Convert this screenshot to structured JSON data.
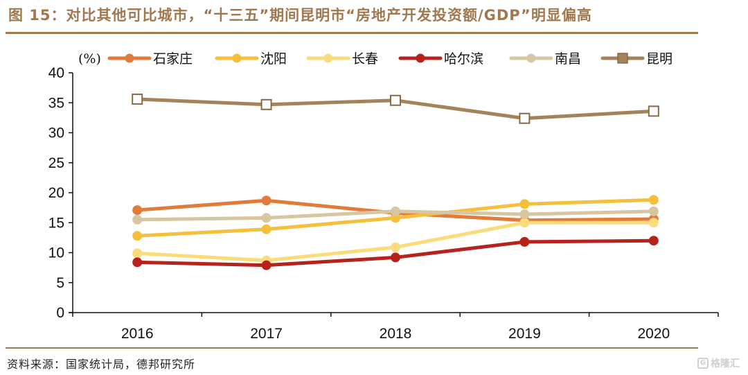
{
  "title": "图 15：对比其他可比城市，“十三五”期间昆明市“房地产开发投资额/GDP”明显偏高",
  "source": "资料来源：国家统计局，德邦研究所",
  "watermark": {
    "icon": "gelonghui-logo-icon",
    "text": "格隆汇"
  },
  "chart_data": {
    "type": "line",
    "title": "对比其他可比城市，“十三五”期间昆明市“房地产开发投资额/GDP”明显偏高",
    "figure_label": "图 15",
    "xlabel": "",
    "ylabel": "(%)",
    "unit_label": "(%)",
    "x": [
      "2016",
      "2017",
      "2018",
      "2019",
      "2020"
    ],
    "ylim": [
      0,
      40
    ],
    "yticks": [
      0,
      5,
      10,
      15,
      20,
      25,
      30,
      35,
      40
    ],
    "grid": false,
    "legend_position": "top",
    "series": [
      {
        "name": "石家庄",
        "color": "#e07b39",
        "marker": "circle",
        "values": [
          17.1,
          18.7,
          16.6,
          15.4,
          15.6
        ]
      },
      {
        "name": "沈阳",
        "color": "#f4bf3a",
        "marker": "circle",
        "values": [
          12.8,
          13.9,
          15.8,
          18.1,
          18.8
        ]
      },
      {
        "name": "长春",
        "color": "#fadc7a",
        "marker": "circle",
        "values": [
          9.9,
          8.7,
          10.9,
          15.0,
          15.0
        ]
      },
      {
        "name": "哈尔滨",
        "color": "#b5231c",
        "marker": "circle",
        "values": [
          8.4,
          7.9,
          9.2,
          11.8,
          12.0
        ]
      },
      {
        "name": "南昌",
        "color": "#d6c6a2",
        "marker": "circle",
        "values": [
          15.5,
          15.8,
          16.9,
          16.4,
          16.9
        ]
      },
      {
        "name": "昆明",
        "color": "#a5835a",
        "marker": "square",
        "values": [
          35.6,
          34.7,
          35.4,
          32.4,
          33.6
        ]
      }
    ]
  }
}
